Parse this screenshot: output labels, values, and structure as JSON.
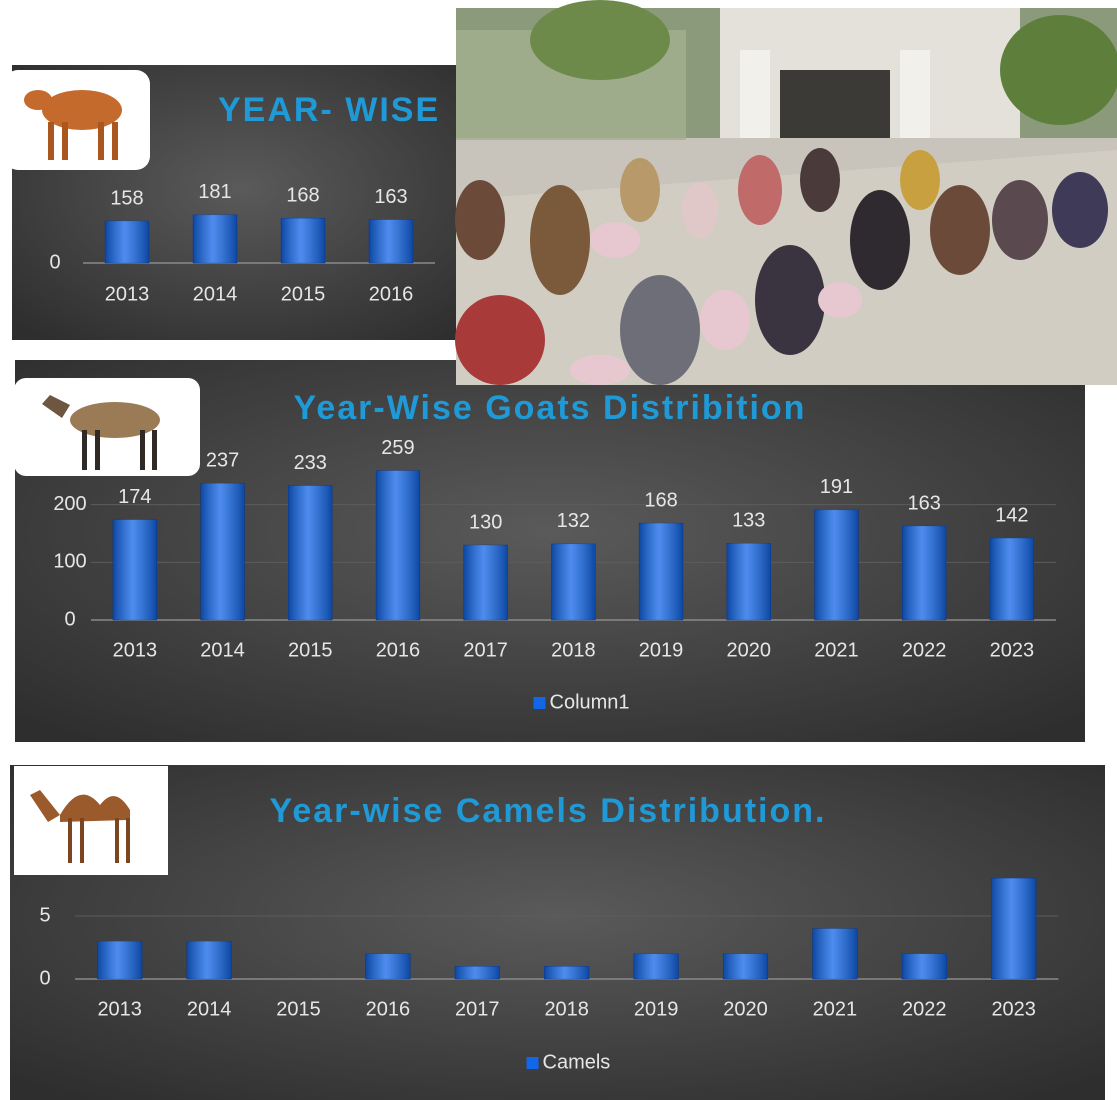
{
  "chart_data": [
    {
      "type": "bar",
      "title": "YEAR- WISE",
      "categories": [
        "2013",
        "2014",
        "2015",
        "2016"
      ],
      "series": [
        {
          "color": "#1266e8",
          "values": [
            158,
            181,
            168,
            163
          ]
        }
      ],
      "ylim": [
        0,
        500
      ],
      "yticks": [
        0
      ],
      "data_labels": true,
      "grid": false
    },
    {
      "type": "bar",
      "title": "Year-Wise Goats Distribition",
      "categories": [
        "2013",
        "2014",
        "2015",
        "2016",
        "2017",
        "2018",
        "2019",
        "2020",
        "2021",
        "2022",
        "2023"
      ],
      "series": [
        {
          "name": "Column1",
          "color": "#1266e8",
          "values": [
            174,
            237,
            233,
            259,
            130,
            132,
            168,
            133,
            191,
            163,
            142
          ]
        }
      ],
      "ylim": [
        0,
        300
      ],
      "yticks": [
        0,
        100,
        200
      ],
      "data_labels": true,
      "grid": true,
      "legend": "bottom"
    },
    {
      "type": "bar",
      "title": "Year-wise Camels Distribution.",
      "categories": [
        "2013",
        "2014",
        "2015",
        "2016",
        "2017",
        "2018",
        "2019",
        "2020",
        "2021",
        "2022",
        "2023"
      ],
      "series": [
        {
          "name": "Camels",
          "color": "#1266e8",
          "values": [
            3,
            3,
            0,
            2,
            1,
            1,
            2,
            2,
            4,
            2,
            8
          ]
        }
      ],
      "ylim": [
        0,
        10
      ],
      "yticks": [
        0,
        5
      ],
      "data_labels": false,
      "grid": true,
      "legend": "bottom"
    }
  ]
}
